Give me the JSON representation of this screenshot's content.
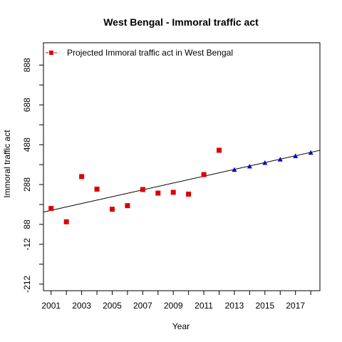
{
  "chart_data": {
    "type": "scatter",
    "title": "West Bengal  -  Immoral traffic act",
    "xlabel": "Year",
    "ylabel": "Immoral traffic act",
    "xlim": [
      2000.5,
      2018.6
    ],
    "ylim": [
      -245,
      1000
    ],
    "x_ticks": [
      2001,
      2003,
      2005,
      2007,
      2009,
      2011,
      2013,
      2015,
      2017
    ],
    "x_ticks_minor": [
      2002,
      2004,
      2006,
      2008,
      2010,
      2012,
      2014,
      2016,
      2018
    ],
    "y_ticks": [
      -212,
      -12,
      88,
      288,
      488,
      688,
      888
    ],
    "y_ticks_minor": [
      -112,
      188,
      388,
      588,
      788
    ],
    "grid": false,
    "legend": {
      "position": "top-left",
      "entries": [
        {
          "label": "Projected  Immoral traffic act  in  West Bengal",
          "color": "#dd0000"
        }
      ]
    },
    "series": [
      {
        "marker": "square",
        "color": "#dd0000",
        "points": [
          [
            2001,
            168
          ],
          [
            2002,
            101
          ],
          [
            2003,
            328
          ],
          [
            2004,
            265
          ],
          [
            2005,
            164
          ],
          [
            2006,
            182
          ],
          [
            2007,
            263
          ],
          [
            2008,
            245
          ],
          [
            2009,
            249
          ],
          [
            2010,
            240
          ],
          [
            2011,
            338
          ],
          [
            2012,
            460
          ]
        ]
      },
      {
        "marker": "triangle",
        "color": "#0000cc",
        "points": [
          [
            2013,
            361
          ],
          [
            2014,
            378
          ],
          [
            2015,
            396
          ],
          [
            2016,
            413
          ],
          [
            2017,
            430
          ],
          [
            2018,
            447
          ]
        ]
      }
    ],
    "trend_line": {
      "color": "#000000",
      "x": [
        2000.5,
        2018.6
      ],
      "y": [
        150,
        460
      ]
    }
  }
}
